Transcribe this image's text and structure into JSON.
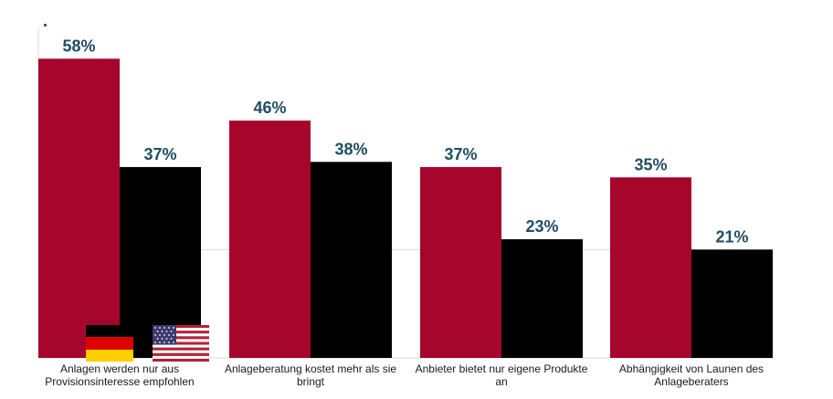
{
  "colors": {
    "germany": "#a6062b",
    "usa": "#000000",
    "value_label": "#1f4e63",
    "category_label": "#1a1a1a",
    "gridline": "#d9d9d9"
  },
  "flags": {
    "germany_icon": "germany-flag-icon",
    "usa_icon": "usa-flag-icon"
  },
  "chart_data": {
    "type": "bar",
    "categories": [
      "Anlagen werden nur aus Provisionsinteresse empfohlen",
      "Anlageberatung kostet mehr als sie bringt",
      "Anbieter bietet nur eigene Produkte an",
      "Abhängigkeit von Launen des Anlageberaters"
    ],
    "category_lines": [
      [
        "Anlagen werden nur aus",
        "Provisionsinteresse empfohlen"
      ],
      [
        "Anlageberatung kostet mehr als sie",
        "bringt"
      ],
      [
        "Anbieter bietet nur eigene Produkte",
        "an"
      ],
      [
        "Abhängigkeit von Launen des",
        "Anlageberaters"
      ]
    ],
    "series": [
      {
        "values": [
          58,
          46,
          37,
          35
        ],
        "labels": [
          "58%",
          "46%",
          "37%",
          "35%"
        ]
      },
      {
        "values": [
          37,
          38,
          23,
          21
        ],
        "labels": [
          "37%",
          "38%",
          "23%",
          "21%"
        ]
      }
    ],
    "ylim": [
      0,
      60
    ],
    "grid": true,
    "legend": "flag icons bottom-left"
  }
}
